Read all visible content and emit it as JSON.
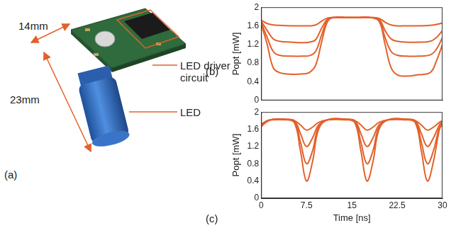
{
  "panel_a": {
    "panel_label": "(a)",
    "width_label": "14mm",
    "length_label": "23mm",
    "callouts": [
      "LED driver circuit",
      "LED"
    ]
  },
  "chart_data": [
    {
      "type": "line",
      "panel_label": "(b)",
      "y_label": "Popt [mW]",
      "x": [
        0,
        1,
        2,
        3,
        5,
        7,
        8,
        9,
        10,
        11,
        12,
        14,
        16,
        18,
        19.5,
        20.5,
        21.5,
        22.5,
        24,
        26,
        28,
        29,
        30
      ],
      "series": [
        {
          "color": "#e2612a",
          "values": [
            1.72,
            1.65,
            1.62,
            1.61,
            1.6,
            1.6,
            1.6,
            1.62,
            1.7,
            1.77,
            1.78,
            1.78,
            1.78,
            1.78,
            1.76,
            1.68,
            1.62,
            1.6,
            1.6,
            1.6,
            1.61,
            1.63,
            1.66
          ]
        },
        {
          "color": "#e2612a",
          "values": [
            1.7,
            1.5,
            1.32,
            1.27,
            1.25,
            1.24,
            1.25,
            1.3,
            1.55,
            1.75,
            1.78,
            1.78,
            1.78,
            1.78,
            1.74,
            1.5,
            1.32,
            1.27,
            1.25,
            1.25,
            1.27,
            1.35,
            1.5
          ]
        },
        {
          "color": "#e2612a",
          "values": [
            1.68,
            1.35,
            1.05,
            0.97,
            0.95,
            0.95,
            0.96,
            1.05,
            1.4,
            1.73,
            1.78,
            1.78,
            1.78,
            1.78,
            1.72,
            1.35,
            1.05,
            0.97,
            0.95,
            0.95,
            0.98,
            1.1,
            1.35
          ]
        },
        {
          "color": "#e2612a",
          "values": [
            1.65,
            1.2,
            0.7,
            0.6,
            0.56,
            0.57,
            0.6,
            0.75,
            1.25,
            1.7,
            1.78,
            1.78,
            1.78,
            1.78,
            1.7,
            1.2,
            0.7,
            0.55,
            0.52,
            0.55,
            0.6,
            0.85,
            1.2
          ]
        }
      ],
      "xlim": [
        0,
        30
      ],
      "xticks": [
        0,
        7.5,
        15,
        22.5,
        30
      ],
      "ylim": [
        0,
        2
      ],
      "yticks": [
        0,
        0.4,
        0.8,
        1.2,
        1.6,
        2
      ],
      "grid": false,
      "tick_labels": "y"
    },
    {
      "type": "line",
      "panel_label": "(c)",
      "x_label": "Time [ns]",
      "y_label": "Popt [mW]",
      "x": [
        0,
        1,
        2,
        4,
        5.5,
        6.5,
        7.5,
        8.5,
        9.5,
        11,
        14,
        15.5,
        16.5,
        17.5,
        18.5,
        19.5,
        21,
        24,
        25.5,
        26.5,
        27.5,
        28.5,
        29.5,
        30
      ],
      "series": [
        {
          "color": "#e2612a",
          "values": [
            1.72,
            1.8,
            1.82,
            1.82,
            1.8,
            1.7,
            1.58,
            1.65,
            1.76,
            1.82,
            1.82,
            1.8,
            1.7,
            1.58,
            1.65,
            1.76,
            1.82,
            1.82,
            1.8,
            1.7,
            1.58,
            1.65,
            1.76,
            1.8
          ]
        },
        {
          "color": "#e2612a",
          "values": [
            1.7,
            1.8,
            1.83,
            1.83,
            1.8,
            1.5,
            1.2,
            1.4,
            1.7,
            1.82,
            1.83,
            1.8,
            1.5,
            1.2,
            1.4,
            1.7,
            1.82,
            1.83,
            1.8,
            1.5,
            1.2,
            1.4,
            1.7,
            1.78
          ]
        },
        {
          "color": "#e2612a",
          "values": [
            1.68,
            1.79,
            1.83,
            1.83,
            1.78,
            1.3,
            0.8,
            1.1,
            1.65,
            1.82,
            1.83,
            1.78,
            1.3,
            0.8,
            1.1,
            1.65,
            1.82,
            1.83,
            1.78,
            1.3,
            0.8,
            1.1,
            1.65,
            1.75
          ]
        },
        {
          "color": "#e2612a",
          "values": [
            1.66,
            1.78,
            1.83,
            1.83,
            1.75,
            1.1,
            0.4,
            0.85,
            1.6,
            1.82,
            1.83,
            1.75,
            1.1,
            0.4,
            0.85,
            1.6,
            1.82,
            1.83,
            1.75,
            1.1,
            0.4,
            0.85,
            1.6,
            1.72
          ]
        }
      ],
      "xlim": [
        0,
        30
      ],
      "xticks": [
        0,
        7.5,
        15,
        22.5,
        30
      ],
      "ylim": [
        0,
        2
      ],
      "yticks": [
        0,
        0.4,
        0.8,
        1.2,
        1.6,
        2
      ],
      "grid": false
    }
  ]
}
